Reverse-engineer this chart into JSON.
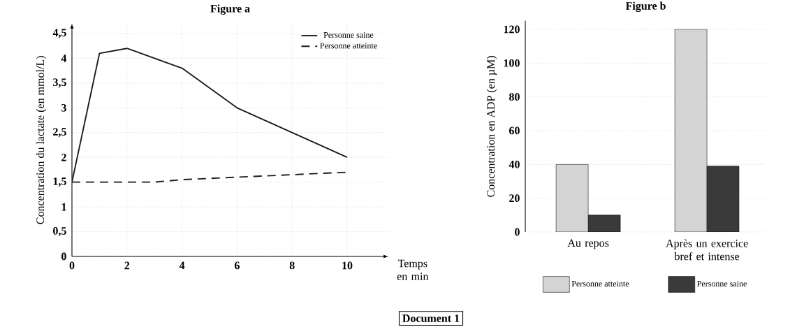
{
  "chart_data": [
    {
      "type": "line",
      "title": "Figure a",
      "xlabel": "Temps en min",
      "ylabel": "Concentration du lactate  (en mmol/L)",
      "series": [
        {
          "name": "Personne saine",
          "color": "#1a1a1a",
          "line_style": "solid",
          "x": [
            0,
            1,
            2,
            4,
            6,
            10
          ],
          "values": [
            1.5,
            4.1,
            4.2,
            3.8,
            3.0,
            2.0
          ]
        },
        {
          "name": "Personne atteinte",
          "color": "#1a1a1a",
          "line_style": "dashed",
          "x": [
            0,
            2,
            3,
            4,
            6,
            10
          ],
          "values": [
            1.5,
            1.5,
            1.5,
            1.55,
            1.6,
            1.7
          ]
        }
      ],
      "xlim": [
        0,
        11.5
      ],
      "ylim": [
        0,
        4.7
      ],
      "xticks": [
        0,
        2,
        4,
        6,
        8,
        10
      ],
      "yticks": [
        0,
        {
          "value": 0.5,
          "label": "0,5"
        },
        1,
        {
          "value": 1.5,
          "label": "1,5"
        },
        2,
        {
          "value": 2.5,
          "label": "2,5"
        },
        3,
        {
          "value": 3.5,
          "label": "3,5"
        },
        4,
        {
          "value": 4.5,
          "label": "4,5"
        }
      ],
      "grid": true,
      "legend": "top right",
      "marker": "none",
      "annotations": [
        "Document 1"
      ]
    },
    {
      "type": "bar",
      "title": "Figure b",
      "ylabel": "Concentration en ADP (en µM)",
      "categories": [
        "Au repos",
        "Après un exercice bref et intense"
      ],
      "series": [
        {
          "name": "Personne atteinte",
          "color": "#d4d4d4",
          "values": [
            40,
            120
          ]
        },
        {
          "name": "Personne saine",
          "color": "#3a3a3a",
          "values": [
            10,
            39
          ]
        }
      ],
      "ylim": [
        0,
        125
      ],
      "yticks": [
        0,
        20,
        40,
        60,
        80,
        100,
        120
      ],
      "grid": "y",
      "legend": "bottom"
    }
  ]
}
